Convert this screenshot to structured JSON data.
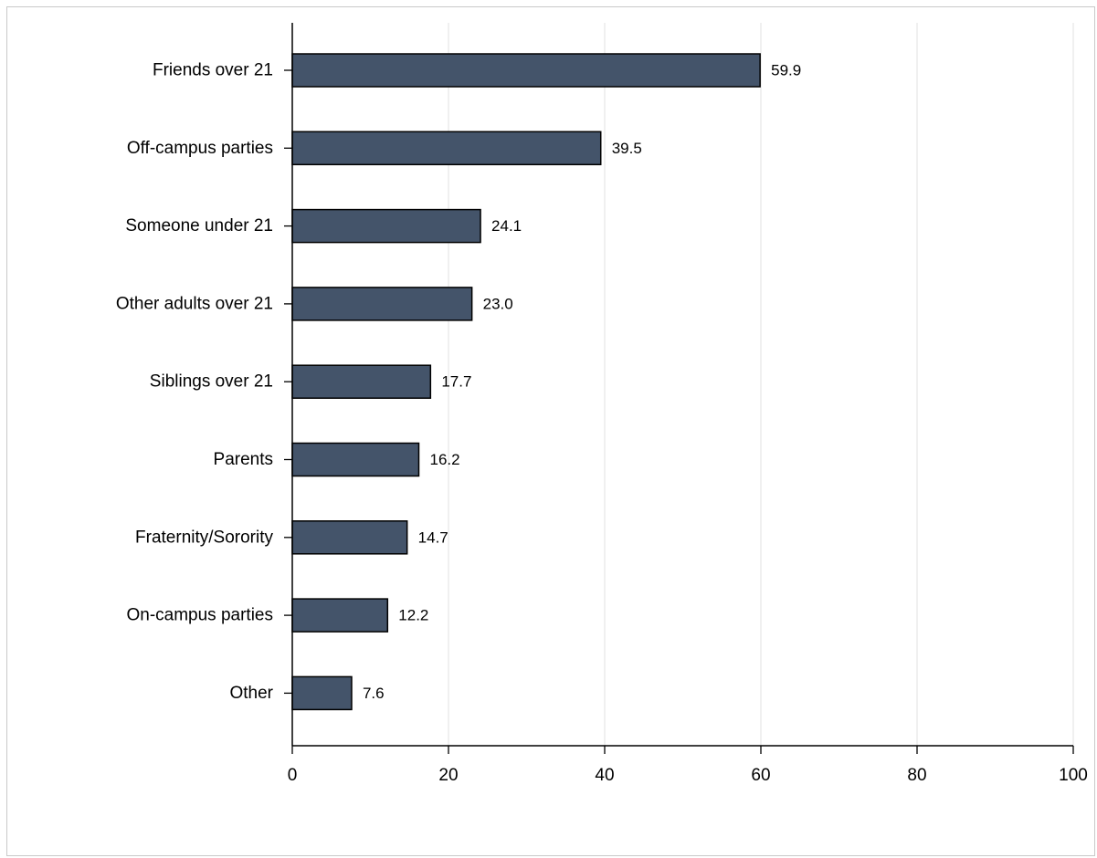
{
  "chart_data": {
    "type": "bar",
    "orientation": "horizontal",
    "categories": [
      "Friends over 21",
      "Off-campus parties",
      "Someone under 21",
      "Other adults over 21",
      "Siblings over 21",
      "Parents",
      "Fraternity/Sorority",
      "On-campus parties",
      "Other"
    ],
    "values": [
      59.9,
      39.5,
      24.1,
      23.0,
      17.7,
      16.2,
      14.7,
      12.2,
      7.6
    ],
    "value_labels": [
      "59.9",
      "39.5",
      "24.1",
      "23.0",
      "17.7",
      "16.2",
      "14.7",
      "12.2",
      "7.6"
    ],
    "xlim": [
      0,
      100
    ],
    "xticks": [
      0,
      20,
      40,
      60,
      80,
      100
    ],
    "xtick_labels": [
      "0",
      "20",
      "40",
      "60",
      "80",
      "100"
    ],
    "title": "",
    "xlabel": "",
    "ylabel": "",
    "grid": "vertical",
    "bar_color": "#44546a",
    "bar_edge_color": "#000000",
    "grid_color": "#e6e6e6"
  }
}
